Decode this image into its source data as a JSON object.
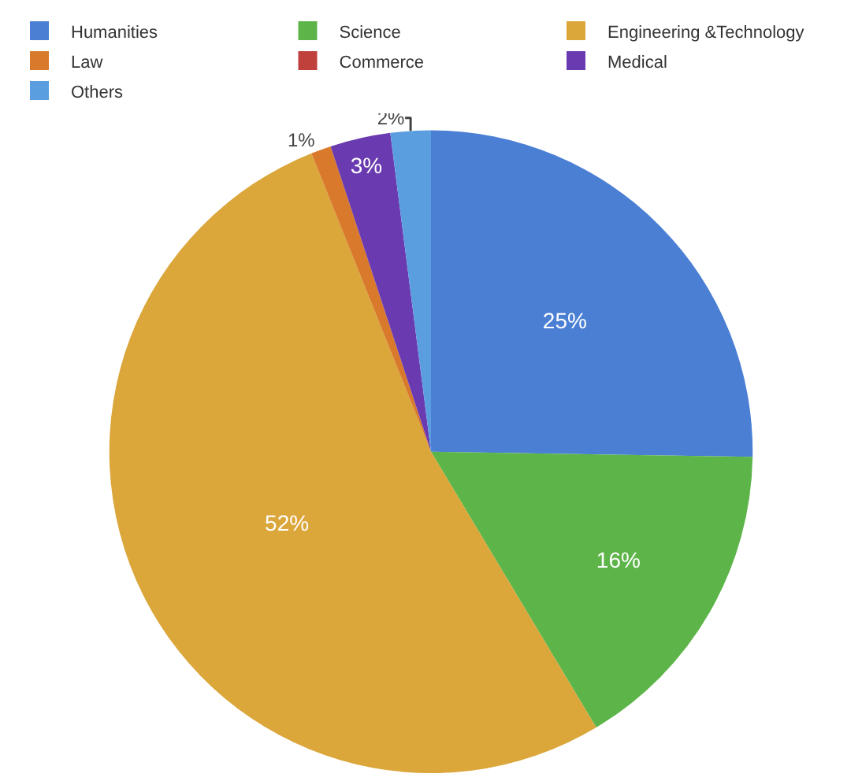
{
  "chart_data": {
    "type": "pie",
    "categories": [
      "Humanities",
      "Science",
      "Engineering &Technology",
      "Law",
      "Commerce",
      "Medical",
      "Others"
    ],
    "values": [
      25,
      16,
      52,
      1,
      0,
      3,
      2
    ],
    "value_labels": [
      "25%",
      "16%",
      "52%",
      "1%",
      null,
      "3%",
      "2%"
    ],
    "colors": [
      "#4a7fd4",
      "#5db54a",
      "#dba63a",
      "#d8792c",
      "#c0403c",
      "#6a3bb0",
      "#5b9ee0"
    ],
    "legend": "top"
  }
}
